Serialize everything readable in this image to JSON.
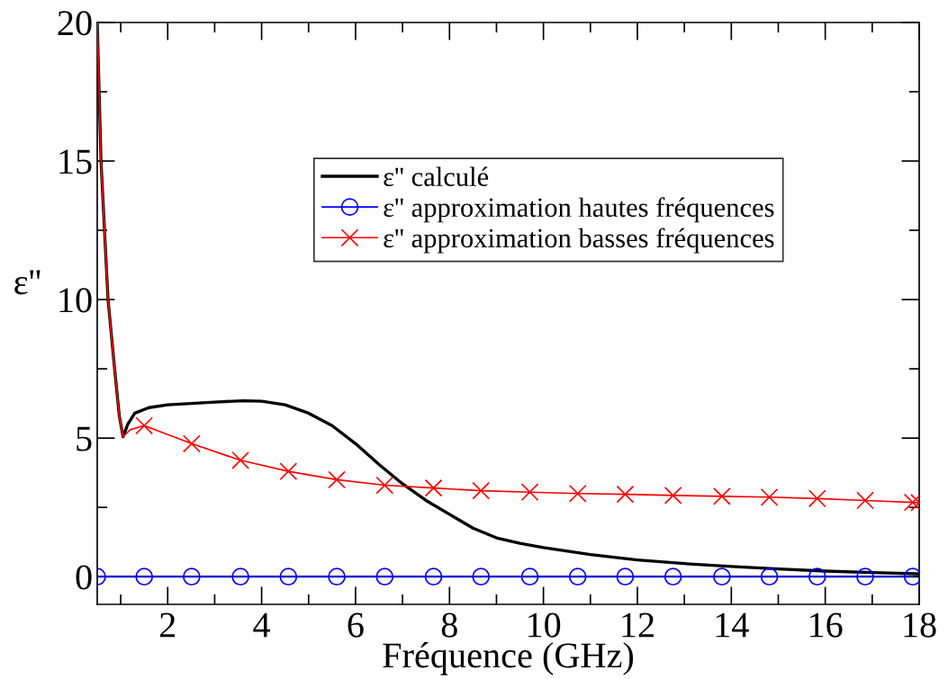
{
  "chart_data": {
    "type": "line",
    "xlabel": "Fréquence (GHz)",
    "ylabel": "ε''",
    "xlim": [
      0.5,
      18
    ],
    "xticks": [
      2,
      4,
      6,
      8,
      10,
      12,
      14,
      16,
      18
    ],
    "ylim": [
      -1,
      20
    ],
    "yticks": [
      0,
      5,
      10,
      15,
      20
    ],
    "grid": false,
    "legend": "top right",
    "ref_lines": [
      {
        "axis": "y",
        "value": 0,
        "color": "#000000"
      }
    ],
    "series": [
      {
        "name": "ε'' calculé",
        "color": "#000000",
        "marker": "none",
        "x": [
          0.5,
          0.58,
          0.73,
          0.87,
          0.97,
          1.05,
          1.15,
          1.3,
          1.6,
          2,
          3,
          3.6,
          4,
          4.5,
          5,
          5.5,
          6,
          6.5,
          7,
          7.5,
          8,
          8.5,
          9,
          9.5,
          10,
          11,
          12,
          13,
          14,
          15,
          16,
          17,
          18
        ],
        "values": [
          20,
          15,
          10,
          7.5,
          5.8,
          5.05,
          5.5,
          5.9,
          6.1,
          6.2,
          6.3,
          6.35,
          6.33,
          6.2,
          5.9,
          5.45,
          4.8,
          4.05,
          3.35,
          2.75,
          2.25,
          1.75,
          1.4,
          1.2,
          1.05,
          0.8,
          0.6,
          0.47,
          0.37,
          0.28,
          0.2,
          0.15,
          0.1
        ]
      },
      {
        "name": "ε'' approximation hautes fréquences",
        "color": "#0000ff",
        "marker": "circle",
        "x": [
          0.5,
          1.5,
          2.51,
          3.55,
          4.57,
          5.6,
          6.62,
          7.66,
          8.67,
          9.71,
          10.73,
          11.74,
          12.76,
          13.8,
          14.81,
          15.83,
          16.85,
          17.86
        ],
        "values": [
          0,
          0,
          0,
          0,
          0,
          0,
          0,
          0,
          0,
          0,
          0,
          0,
          0,
          0,
          0,
          0,
          0,
          0
        ]
      },
      {
        "color": "#ff0000",
        "marker": "none",
        "x": [
          0.5,
          0.58,
          0.73,
          0.87,
          0.97,
          1.05,
          1.2,
          1.5
        ],
        "values": [
          20,
          15,
          10,
          7.5,
          5.8,
          5.05,
          5.3,
          5.45
        ]
      },
      {
        "name": "ε'' approximation basses fréquences",
        "color": "#ff0000",
        "marker": "cross",
        "x": [
          1.5,
          2.51,
          3.55,
          4.57,
          5.6,
          6.62,
          7.66,
          8.67,
          9.71,
          10.73,
          11.74,
          12.76,
          13.8,
          14.81,
          15.83,
          16.85,
          17.86,
          18
        ],
        "values": [
          5.45,
          4.8,
          4.2,
          3.8,
          3.5,
          3.3,
          3.2,
          3.1,
          3.05,
          3.0,
          2.97,
          2.93,
          2.9,
          2.87,
          2.82,
          2.75,
          2.68,
          2.67
        ]
      }
    ]
  }
}
